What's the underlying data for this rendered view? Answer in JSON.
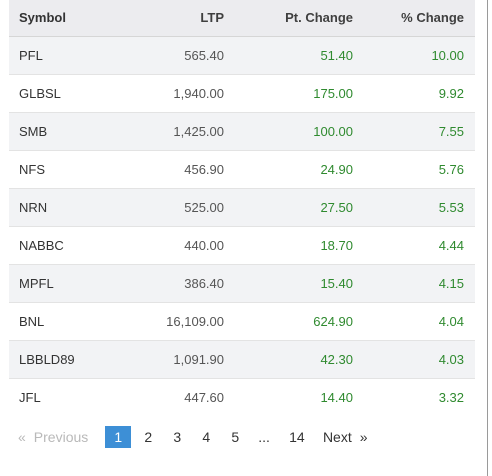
{
  "table": {
    "headers": {
      "symbol": "Symbol",
      "ltp": "LTP",
      "pt_change": "Pt. Change",
      "pct_change": "% Change"
    },
    "rows": [
      {
        "symbol": "PFL",
        "ltp": "565.40",
        "pt_change": "51.40",
        "pct_change": "10.00"
      },
      {
        "symbol": "GLBSL",
        "ltp": "1,940.00",
        "pt_change": "175.00",
        "pct_change": "9.92"
      },
      {
        "symbol": "SMB",
        "ltp": "1,425.00",
        "pt_change": "100.00",
        "pct_change": "7.55"
      },
      {
        "symbol": "NFS",
        "ltp": "456.90",
        "pt_change": "24.90",
        "pct_change": "5.76"
      },
      {
        "symbol": "NRN",
        "ltp": "525.00",
        "pt_change": "27.50",
        "pct_change": "5.53"
      },
      {
        "symbol": "NABBC",
        "ltp": "440.00",
        "pt_change": "18.70",
        "pct_change": "4.44"
      },
      {
        "symbol": "MPFL",
        "ltp": "386.40",
        "pt_change": "15.40",
        "pct_change": "4.15"
      },
      {
        "symbol": "BNL",
        "ltp": "16,109.00",
        "pt_change": "624.90",
        "pct_change": "4.04"
      },
      {
        "symbol": "LBBLD89",
        "ltp": "1,091.90",
        "pt_change": "42.30",
        "pct_change": "4.03"
      },
      {
        "symbol": "JFL",
        "ltp": "447.60",
        "pt_change": "14.40",
        "pct_change": "3.32"
      }
    ]
  },
  "pagination": {
    "prev_arrow": "«",
    "prev_label": "Previous",
    "pages": [
      "1",
      "2",
      "3",
      "4",
      "5"
    ],
    "active_page": "1",
    "ellipsis": "...",
    "last_page": "14",
    "next_label": "Next",
    "next_arrow": "»"
  },
  "colors": {
    "positive": "#2f8a2f",
    "active_page_bg": "#3d8fd6",
    "header_bg": "#ececef",
    "stripe_bg": "#f2f3f5"
  }
}
